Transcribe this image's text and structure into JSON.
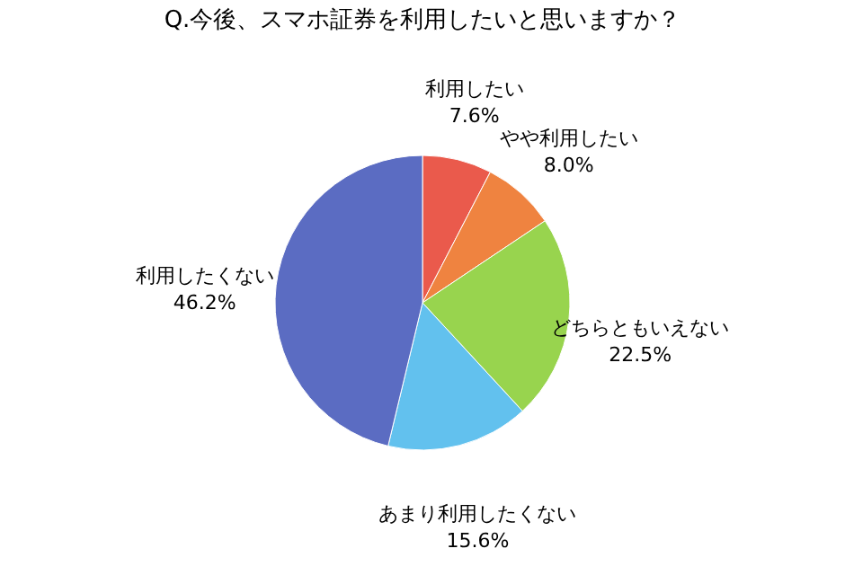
{
  "chart_data": {
    "type": "pie",
    "title": "Q.今後、スマホ証券を利用したいと思いますか？",
    "categories": [
      "利用したい",
      "やや利用したい",
      "どちらともいえない",
      "あまり利用したくない",
      "利用したくない"
    ],
    "values": [
      7.6,
      8.0,
      22.5,
      15.6,
      46.2
    ],
    "colors": [
      "#ea5a4c",
      "#ef8340",
      "#98d44e",
      "#62c1ee",
      "#5b6cc2"
    ],
    "value_labels": [
      "7.6%",
      "8.0%",
      "22.5%",
      "15.6%",
      "46.2%"
    ],
    "legend": false
  }
}
